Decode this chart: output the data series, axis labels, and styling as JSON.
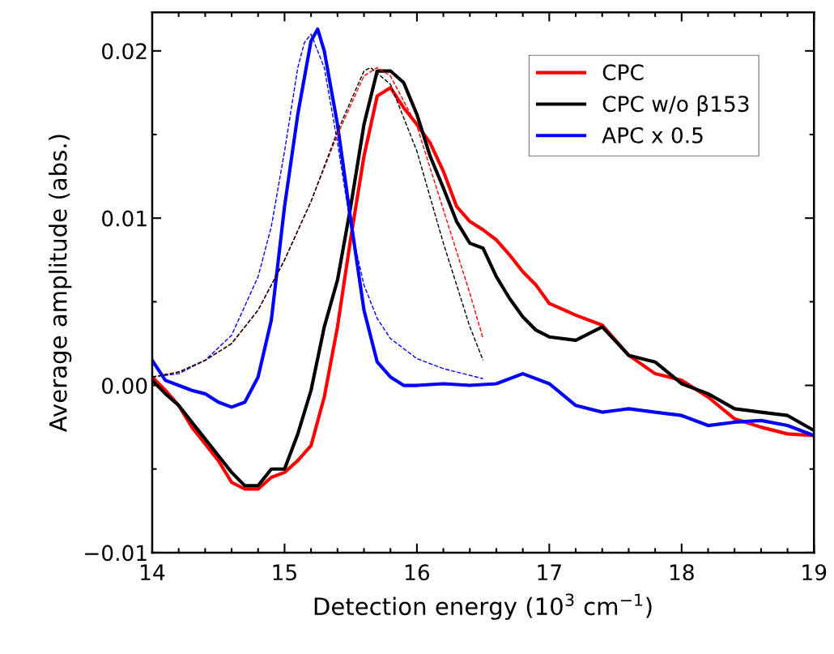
{
  "chart_data": {
    "type": "line",
    "xlabel": "Detection energy (10$^{3}$ cm$^{−1}$)",
    "ylabel": "Average amplitude (abs.)",
    "xlim": [
      14,
      19
    ],
    "ylim": [
      -0.01,
      0.0223
    ],
    "xticks": [
      14,
      {
        "value": 14.2,
        "label": null
      },
      {
        "value": 14.4,
        "label": null
      },
      {
        "value": 14.6,
        "label": null
      },
      {
        "value": 14.8,
        "label": null
      },
      15,
      {
        "value": 15.2,
        "label": null
      },
      {
        "value": 15.4,
        "label": null
      },
      {
        "value": 15.6,
        "label": null
      },
      {
        "value": 15.8,
        "label": null
      },
      16,
      {
        "value": 16.2,
        "label": null
      },
      {
        "value": 16.4,
        "label": null
      },
      {
        "value": 16.6,
        "label": null
      },
      {
        "value": 16.8,
        "label": null
      },
      17,
      {
        "value": 17.2,
        "label": null
      },
      {
        "value": 17.4,
        "label": null
      },
      {
        "value": 17.6,
        "label": null
      },
      {
        "value": 17.8,
        "label": null
      },
      18,
      {
        "value": 18.2,
        "label": null
      },
      {
        "value": 18.4,
        "label": null
      },
      {
        "value": 18.6,
        "label": null
      },
      {
        "value": 18.8,
        "label": null
      },
      19
    ],
    "yticks": [
      {
        "value": -0.01,
        "label": "−0.01"
      },
      {
        "value": -0.005,
        "label": null
      },
      {
        "value": 0,
        "label": "0.00"
      },
      {
        "value": 0.005,
        "label": null
      },
      {
        "value": 0.01,
        "label": "0.01"
      },
      {
        "value": 0.015,
        "label": null
      },
      {
        "value": 0.02,
        "label": "0.02"
      }
    ],
    "grid": false,
    "legend": "top right",
    "marker": "none",
    "series": [
      {
        "name": "CPC",
        "color": "#ff0000",
        "line_style": "solid",
        "x": [
          14.0,
          14.1,
          14.2,
          14.3,
          14.4,
          14.5,
          14.6,
          14.7,
          14.8,
          14.9,
          15.0,
          15.1,
          15.2,
          15.3,
          15.4,
          15.5,
          15.6,
          15.7,
          15.8,
          15.9,
          16.0,
          16.1,
          16.2,
          16.3,
          16.4,
          16.5,
          16.6,
          16.7,
          16.8,
          16.9,
          17.0,
          17.2,
          17.4,
          17.6,
          17.8,
          18.0,
          18.2,
          18.4,
          18.6,
          18.8,
          19.0
        ],
        "values": [
          0.0005,
          -0.0003,
          -0.0012,
          -0.0025,
          -0.0035,
          -0.0045,
          -0.0058,
          -0.0062,
          -0.0062,
          -0.0055,
          -0.0052,
          -0.0045,
          -0.0036,
          -0.0007,
          0.0035,
          0.0088,
          0.0137,
          0.0173,
          0.0178,
          0.0166,
          0.0156,
          0.0145,
          0.0128,
          0.0107,
          0.0098,
          0.0093,
          0.0087,
          0.0078,
          0.0068,
          0.006,
          0.0049,
          0.0042,
          0.0036,
          0.0018,
          0.0007,
          0.0003,
          -0.0007,
          -0.002,
          -0.0025,
          -0.0029,
          -0.003
        ]
      },
      {
        "name": "CPC w/o β153",
        "color": "#000000",
        "line_style": "solid",
        "x": [
          14.0,
          14.1,
          14.2,
          14.3,
          14.4,
          14.5,
          14.6,
          14.7,
          14.8,
          14.9,
          15.0,
          15.1,
          15.2,
          15.3,
          15.4,
          15.5,
          15.6,
          15.7,
          15.8,
          15.9,
          16.0,
          16.1,
          16.2,
          16.3,
          16.4,
          16.5,
          16.6,
          16.7,
          16.8,
          16.9,
          17.0,
          17.2,
          17.4,
          17.6,
          17.8,
          18.0,
          18.2,
          18.4,
          18.6,
          18.8,
          19.0
        ],
        "values": [
          0.0003,
          -0.0005,
          -0.0012,
          -0.0022,
          -0.0032,
          -0.0042,
          -0.0052,
          -0.006,
          -0.006,
          -0.005,
          -0.005,
          -0.0029,
          -0.0003,
          0.0035,
          0.0063,
          0.0107,
          0.0156,
          0.0188,
          0.0188,
          0.0181,
          0.0162,
          0.0137,
          0.0118,
          0.0098,
          0.0085,
          0.0082,
          0.0065,
          0.0052,
          0.0041,
          0.0033,
          0.0029,
          0.0027,
          0.0035,
          0.0018,
          0.0014,
          0.0001,
          -0.0005,
          -0.0014,
          -0.0016,
          -0.0018,
          -0.0027
        ]
      },
      {
        "name": "APC x 0.5",
        "color": "#0000ff",
        "line_style": "solid",
        "x": [
          14.0,
          14.1,
          14.2,
          14.3,
          14.4,
          14.5,
          14.6,
          14.7,
          14.8,
          14.9,
          15.0,
          15.1,
          15.2,
          15.25,
          15.3,
          15.4,
          15.5,
          15.6,
          15.7,
          15.8,
          15.9,
          16.0,
          16.2,
          16.4,
          16.6,
          16.8,
          17.0,
          17.2,
          17.4,
          17.6,
          17.8,
          18.0,
          18.2,
          18.4,
          18.6,
          18.8,
          19.0
        ],
        "values": [
          0.0015,
          0.0003,
          0.0,
          -0.0003,
          -0.0005,
          -0.001,
          -0.0013,
          -0.001,
          0.0005,
          0.0039,
          0.0107,
          0.0162,
          0.0206,
          0.0213,
          0.02,
          0.0156,
          0.0099,
          0.0045,
          0.0014,
          0.0005,
          0.0,
          0.0,
          0.0001,
          0.0,
          0.0001,
          0.0007,
          0.0001,
          -0.0012,
          -0.0016,
          -0.0014,
          -0.0016,
          -0.0018,
          -0.0024,
          -0.0022,
          -0.0021,
          -0.0024,
          -0.003
        ]
      },
      {
        "color": "#0000ff",
        "line_style": "dashed",
        "x": [
          14.0,
          14.2,
          14.4,
          14.6,
          14.8,
          14.9,
          15.0,
          15.1,
          15.15,
          15.2,
          15.3,
          15.4,
          15.5,
          15.6,
          15.7,
          15.8,
          16.0,
          16.2,
          16.4,
          16.5
        ],
        "values": [
          0.0005,
          0.0007,
          0.0015,
          0.003,
          0.0065,
          0.0095,
          0.014,
          0.019,
          0.0205,
          0.021,
          0.019,
          0.0145,
          0.0095,
          0.006,
          0.004,
          0.0028,
          0.0016,
          0.001,
          0.0006,
          0.0004
        ]
      },
      {
        "color": "#ff0000",
        "line_style": "dashed",
        "x": [
          14.0,
          14.2,
          14.4,
          14.6,
          14.8,
          15.0,
          15.2,
          15.4,
          15.6,
          15.7,
          15.8,
          16.0,
          16.2,
          16.4,
          16.5
        ],
        "values": [
          0.0005,
          0.0008,
          0.0015,
          0.0025,
          0.0045,
          0.0075,
          0.011,
          0.015,
          0.0185,
          0.019,
          0.0185,
          0.0155,
          0.0105,
          0.0055,
          0.0028
        ]
      },
      {
        "color": "#000000",
        "line_style": "dashed",
        "x": [
          14.0,
          14.2,
          14.4,
          14.6,
          14.8,
          15.0,
          15.2,
          15.4,
          15.6,
          15.65,
          15.8,
          16.0,
          16.2,
          16.4,
          16.5
        ],
        "values": [
          0.0005,
          0.0008,
          0.0015,
          0.0025,
          0.0045,
          0.0075,
          0.011,
          0.0152,
          0.0188,
          0.019,
          0.018,
          0.014,
          0.0085,
          0.0035,
          0.0015
        ]
      }
    ]
  }
}
